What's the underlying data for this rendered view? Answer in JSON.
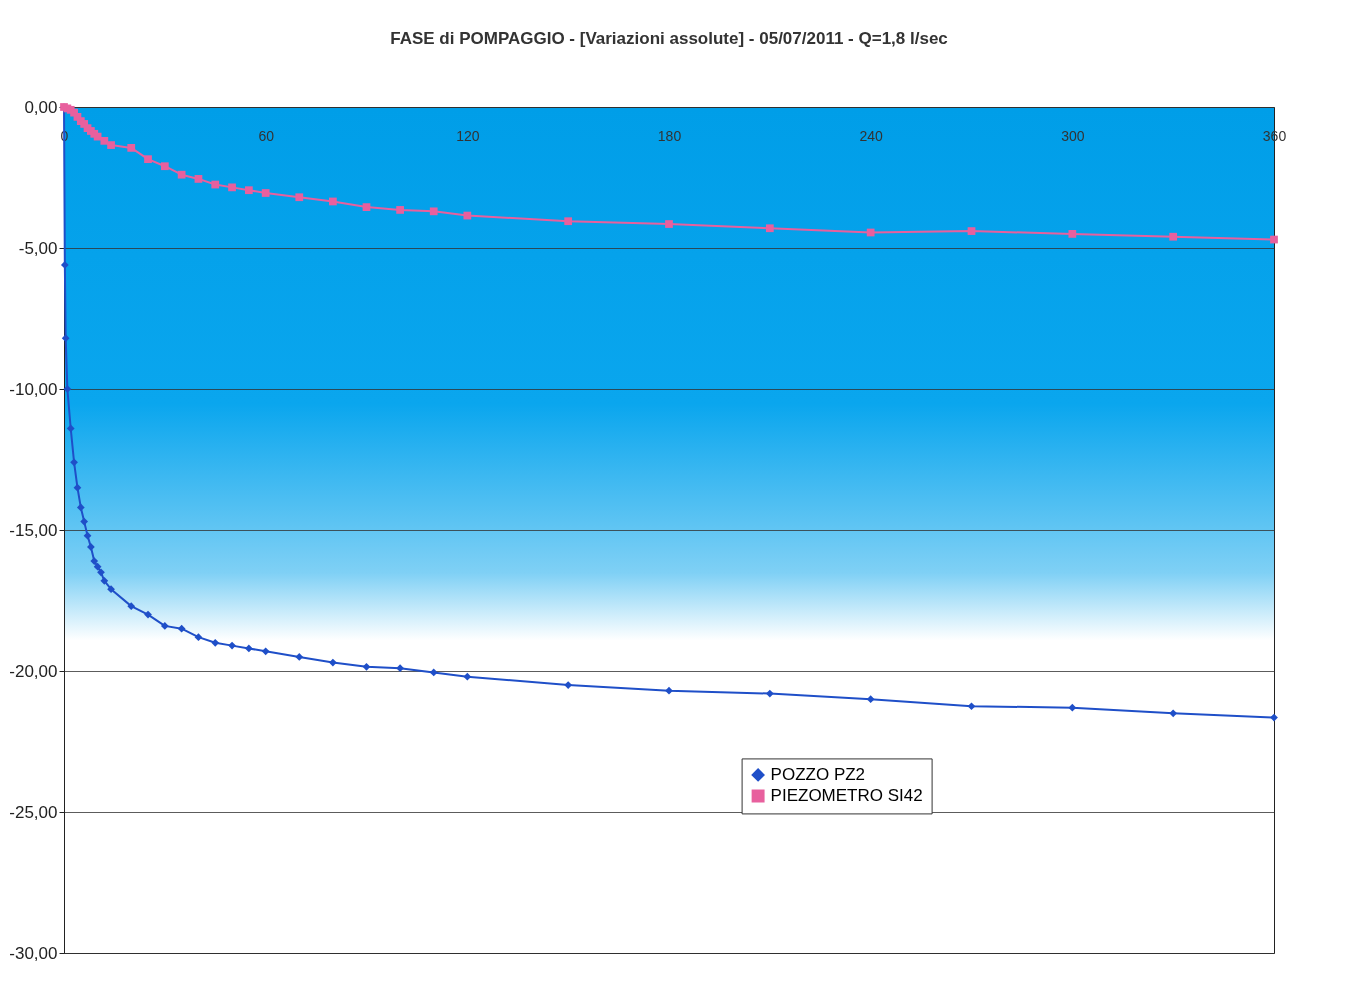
{
  "chart_data": {
    "type": "line",
    "title": "FASE di POMPAGGIO - [Variazioni assolute] - 05/07/2011 - Q=1,8 l/sec",
    "xlim": [
      0,
      360
    ],
    "xticks": [
      0,
      60,
      120,
      180,
      240,
      300,
      360
    ],
    "ylim": [
      -30,
      0
    ],
    "yticks": [
      {
        "value": 0,
        "label": "0,00"
      },
      {
        "value": -5,
        "label": "-5,00"
      },
      {
        "value": -10,
        "label": "-10,00"
      },
      {
        "value": -15,
        "label": "-15,00"
      },
      {
        "value": -20,
        "label": "-20,00"
      },
      {
        "value": -25,
        "label": "-25,00"
      },
      {
        "value": -30,
        "label": "-30,00"
      }
    ],
    "grid": "y",
    "legend": "bottom right",
    "line_style": "solid",
    "series": [
      {
        "name": "POZZO PZ2",
        "color": "#1f4fc8",
        "marker": "diamond",
        "x": [
          0,
          0.25,
          0.5,
          1,
          2,
          3,
          4,
          5,
          6,
          7,
          8,
          9,
          10,
          11,
          12,
          14,
          20,
          25,
          30,
          35,
          40,
          45,
          50,
          55,
          60,
          70,
          80,
          90,
          100,
          110,
          120,
          150,
          180,
          210,
          240,
          270,
          300,
          330,
          360
        ],
        "values": [
          0,
          -5.6,
          -8.2,
          -10,
          -11.4,
          -12.6,
          -13.5,
          -14.2,
          -14.7,
          -15.2,
          -15.6,
          -16.1,
          -16.3,
          -16.5,
          -16.8,
          -17.1,
          -17.7,
          -18,
          -18.4,
          -18.5,
          -18.8,
          -19,
          -19.1,
          -19.2,
          -19.3,
          -19.5,
          -19.7,
          -19.85,
          -19.9,
          -20.05,
          -20.2,
          -20.5,
          -20.7,
          -20.8,
          -21,
          -21.25,
          -21.3,
          -21.5,
          -21.65
        ]
      },
      {
        "name": "PIEZOMETRO SI42",
        "color": "#e8609e",
        "marker": "square",
        "x": [
          0,
          1,
          2,
          3,
          4,
          5,
          6,
          7,
          8,
          9,
          10,
          12,
          14,
          20,
          25,
          30,
          35,
          40,
          45,
          50,
          55,
          60,
          70,
          80,
          90,
          100,
          110,
          120,
          150,
          180,
          210,
          240,
          270,
          300,
          330,
          360
        ],
        "values": [
          0,
          -0.05,
          -0.1,
          -0.2,
          -0.35,
          -0.5,
          -0.6,
          -0.75,
          -0.85,
          -0.95,
          -1.05,
          -1.2,
          -1.35,
          -1.45,
          -1.85,
          -2.1,
          -2.4,
          -2.55,
          -2.75,
          -2.85,
          -2.95,
          -3.05,
          -3.2,
          -3.35,
          -3.55,
          -3.65,
          -3.7,
          -3.85,
          -4.05,
          -4.15,
          -4.3,
          -4.45,
          -4.4,
          -4.5,
          -4.6,
          -4.7
        ]
      }
    ]
  }
}
